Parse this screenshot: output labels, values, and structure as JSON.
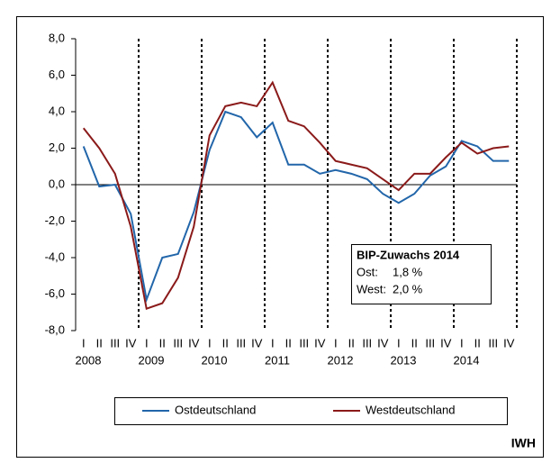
{
  "chart_data": {
    "type": "line",
    "categories": [
      "I",
      "II",
      "III",
      "IV",
      "I",
      "II",
      "III",
      "IV",
      "I",
      "II",
      "III",
      "IV",
      "I",
      "II",
      "III",
      "IV",
      "I",
      "II",
      "III",
      "IV",
      "I",
      "II",
      "III",
      "IV",
      "I",
      "II",
      "III",
      "IV"
    ],
    "year_labels": [
      "2008",
      "2009",
      "2010",
      "2011",
      "2012",
      "2013",
      "2014"
    ],
    "series": [
      {
        "name": "Ostdeutschland",
        "color": "#2266aa",
        "values": [
          2.1,
          -0.1,
          0.0,
          -1.6,
          -6.3,
          -4.0,
          -3.8,
          -1.5,
          1.9,
          4.0,
          3.7,
          2.6,
          3.4,
          1.1,
          1.1,
          0.6,
          0.8,
          0.6,
          0.3,
          -0.5,
          -1.0,
          -0.5,
          0.5,
          1.0,
          2.4,
          2.1,
          1.3,
          1.3
        ]
      },
      {
        "name": "Westdeutschland",
        "color": "#8b1a1a",
        "values": [
          3.1,
          2.0,
          0.6,
          -2.3,
          -6.8,
          -6.5,
          -5.1,
          -2.3,
          2.7,
          4.3,
          4.5,
          4.3,
          5.6,
          3.5,
          3.2,
          2.3,
          1.3,
          1.1,
          0.9,
          0.3,
          -0.3,
          0.6,
          0.6,
          1.5,
          2.3,
          1.7,
          2.0,
          2.1
        ]
      }
    ],
    "ylim": [
      -8,
      8
    ],
    "yticks": [
      {
        "value": -8,
        "label": "-8,0"
      },
      {
        "value": -6,
        "label": "-6,0"
      },
      {
        "value": -4,
        "label": "-4,0"
      },
      {
        "value": -2,
        "label": "-2,0"
      },
      {
        "value": 0,
        "label": "0,0"
      },
      {
        "value": 2,
        "label": "2,0"
      },
      {
        "value": 4,
        "label": "4,0"
      },
      {
        "value": 6,
        "label": "6,0"
      },
      {
        "value": 8,
        "label": "8,0"
      }
    ],
    "annotation": {
      "title": "BIP-Zuwachs 2014",
      "rows": [
        [
          "Ost:",
          "1,8 %"
        ],
        [
          "West:",
          "2,0 %"
        ]
      ]
    },
    "source": "IWH"
  }
}
